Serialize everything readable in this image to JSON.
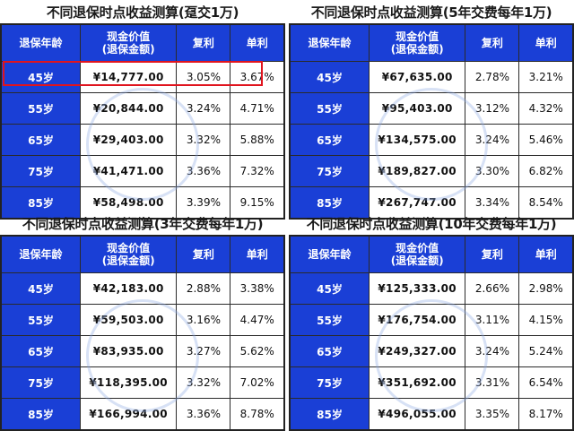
{
  "headers": {
    "age": "退保年龄",
    "cash_line1": "现金价值",
    "cash_line2": "(退保金额)",
    "compound": "复利",
    "simple": "单利"
  },
  "panels": [
    {
      "title": "不同退保时点收益测算(趸交1万)",
      "rows": [
        {
          "age": "45岁",
          "value": "¥14,777.00",
          "compound": "3.05%",
          "simple": "3.67%"
        },
        {
          "age": "55岁",
          "value": "¥20,844.00",
          "compound": "3.24%",
          "simple": "4.71%"
        },
        {
          "age": "65岁",
          "value": "¥29,403.00",
          "compound": "3.32%",
          "simple": "5.88%"
        },
        {
          "age": "75岁",
          "value": "¥41,471.00",
          "compound": "3.36%",
          "simple": "7.32%"
        },
        {
          "age": "85岁",
          "value": "¥58,498.00",
          "compound": "3.39%",
          "simple": "9.15%"
        }
      ]
    },
    {
      "title": "不同退保时点收益测算(5年交费每年1万)",
      "rows": [
        {
          "age": "45岁",
          "value": "¥67,635.00",
          "compound": "2.78%",
          "simple": "3.21%"
        },
        {
          "age": "55岁",
          "value": "¥95,403.00",
          "compound": "3.12%",
          "simple": "4.32%"
        },
        {
          "age": "65岁",
          "value": "¥134,575.00",
          "compound": "3.24%",
          "simple": "5.46%"
        },
        {
          "age": "75岁",
          "value": "¥189,827.00",
          "compound": "3.30%",
          "simple": "6.82%"
        },
        {
          "age": "85岁",
          "value": "¥267,747.00",
          "compound": "3.34%",
          "simple": "8.54%"
        }
      ]
    },
    {
      "title": "不同退保时点收益测算(3年交费每年1万)",
      "rows": [
        {
          "age": "45岁",
          "value": "¥42,183.00",
          "compound": "2.88%",
          "simple": "3.38%"
        },
        {
          "age": "55岁",
          "value": "¥59,503.00",
          "compound": "3.16%",
          "simple": "4.47%"
        },
        {
          "age": "65岁",
          "value": "¥83,935.00",
          "compound": "3.27%",
          "simple": "5.62%"
        },
        {
          "age": "75岁",
          "value": "¥118,395.00",
          "compound": "3.32%",
          "simple": "7.02%"
        },
        {
          "age": "85岁",
          "value": "¥166,994.00",
          "compound": "3.36%",
          "simple": "8.78%"
        }
      ]
    },
    {
      "title": "不同退保时点收益测算(10年交费每年1万)",
      "rows": [
        {
          "age": "45岁",
          "value": "¥125,333.00",
          "compound": "2.66%",
          "simple": "2.98%"
        },
        {
          "age": "55岁",
          "value": "¥176,754.00",
          "compound": "3.11%",
          "simple": "4.15%"
        },
        {
          "age": "65岁",
          "value": "¥249,327.00",
          "compound": "3.24%",
          "simple": "5.24%"
        },
        {
          "age": "75岁",
          "value": "¥351,692.00",
          "compound": "3.31%",
          "simple": "6.54%"
        },
        {
          "age": "85岁",
          "value": "¥496,055.00",
          "compound": "3.35%",
          "simple": "8.17%"
        }
      ]
    }
  ],
  "colors": {
    "header_bg": "#1a3fd6",
    "highlight": "#e0141e"
  }
}
